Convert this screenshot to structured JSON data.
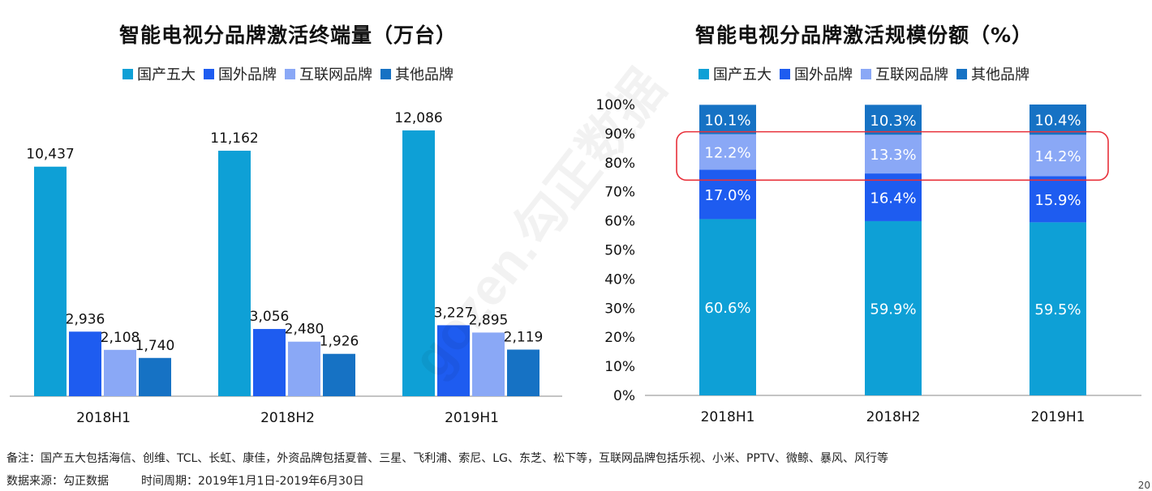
{
  "colors": {
    "国产五大": "#0ea0d6",
    "国外品牌": "#1e5cf0",
    "互联网品牌": "#8aa8f6",
    "其他品牌": "#1672c4"
  },
  "footer": {
    "note": "备注：国产五大包括海信、创维、TCL、长虹、康佳，外资品牌包括夏普、三星、飞利浦、索尼、LG、东芝、松下等，互联网品牌包括乐视、小米、PPTV、微鲸、暴风、风行等",
    "source": "数据来源：勾正数据",
    "period": "时间周期：2019年1月1日-2019年6月30日"
  },
  "page_number": "20",
  "watermark": "gozen.勾正数据",
  "chart_data": [
    {
      "type": "bar",
      "title": "智能电视分品牌激活终端量（万台）",
      "categories": [
        "2018H1",
        "2018H2",
        "2019H1"
      ],
      "series": [
        {
          "name": "国产五大",
          "values": [
            10437,
            11162,
            12086
          ]
        },
        {
          "name": "国外品牌",
          "values": [
            2936,
            3056,
            3227
          ]
        },
        {
          "name": "互联网品牌",
          "values": [
            2108,
            2480,
            2895
          ]
        },
        {
          "name": "其他品牌",
          "values": [
            1740,
            1926,
            2119
          ]
        }
      ],
      "data_labels": [
        [
          "10,437",
          "2,936",
          "2,108",
          "1,740"
        ],
        [
          "11,162",
          "3,056",
          "2,480",
          "1,926"
        ],
        [
          "12,086",
          "3,227",
          "2,895",
          "2,119"
        ]
      ],
      "ylim": [
        0,
        14000
      ],
      "legend": "top",
      "grid": false
    },
    {
      "type": "bar",
      "stacked": true,
      "title": "智能电视分品牌激活规模份额（%）",
      "categories": [
        "2018H1",
        "2018H2",
        "2019H1"
      ],
      "series": [
        {
          "name": "国产五大",
          "values": [
            60.6,
            59.9,
            59.5
          ]
        },
        {
          "name": "国外品牌",
          "values": [
            17.0,
            16.4,
            15.9
          ]
        },
        {
          "name": "互联网品牌",
          "values": [
            12.2,
            13.3,
            14.2
          ]
        },
        {
          "name": "其他品牌",
          "values": [
            10.1,
            10.3,
            10.4
          ]
        }
      ],
      "yticks": [
        "0%",
        "10%",
        "20%",
        "30%",
        "40%",
        "50%",
        "60%",
        "70%",
        "80%",
        "90%",
        "100%"
      ],
      "ylim": [
        0,
        100
      ],
      "legend": "top",
      "grid": false,
      "highlight": "互联网品牌"
    }
  ]
}
